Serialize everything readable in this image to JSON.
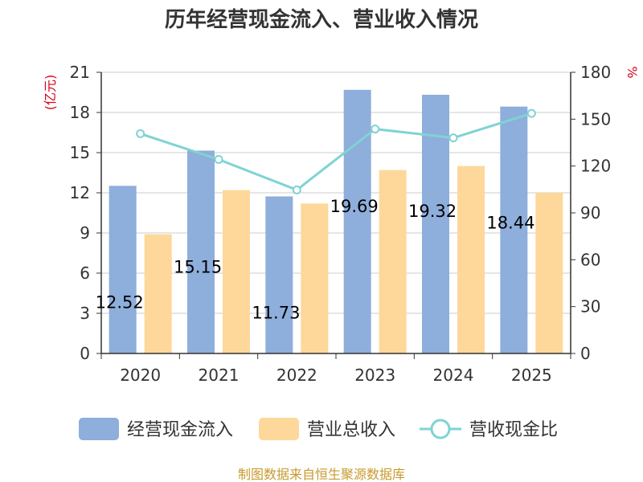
{
  "chart_data": {
    "type": "bar",
    "title": "历年经营现金流入、营业收入情况",
    "categories": [
      "2020",
      "2021",
      "2022",
      "2023",
      "2024",
      "2025"
    ],
    "y_left": {
      "unit": "(亿元)",
      "ticks": [
        "0",
        "3",
        "6",
        "9",
        "12",
        "15",
        "18",
        "21"
      ],
      "ylim": [
        0,
        21
      ]
    },
    "y_right": {
      "unit": "%",
      "ticks": [
        "0",
        "30",
        "60",
        "90",
        "120",
        "150",
        "180"
      ],
      "ylim": [
        0,
        180
      ]
    },
    "series": [
      {
        "name": "经营现金流入",
        "type": "bar",
        "axis": "left",
        "color": "#8eaedb",
        "values": [
          12.52,
          15.15,
          11.73,
          19.69,
          19.32,
          18.44
        ],
        "labels": [
          "12.52",
          "15.15",
          "11.73",
          "19.69",
          "19.32",
          "18.44"
        ]
      },
      {
        "name": "营业总收入",
        "type": "bar",
        "axis": "left",
        "color": "#fdd89a",
        "values": [
          8.9,
          12.2,
          11.2,
          13.7,
          14.0,
          12.0
        ]
      },
      {
        "name": "营收现金比",
        "type": "line",
        "axis": "right",
        "color": "#7fd3d3",
        "values": [
          140.7,
          124.2,
          104.7,
          143.7,
          138.0,
          153.7
        ]
      }
    ],
    "grid": true,
    "legend_position": "bottom"
  },
  "source_note": "制图数据来自恒生聚源数据库"
}
